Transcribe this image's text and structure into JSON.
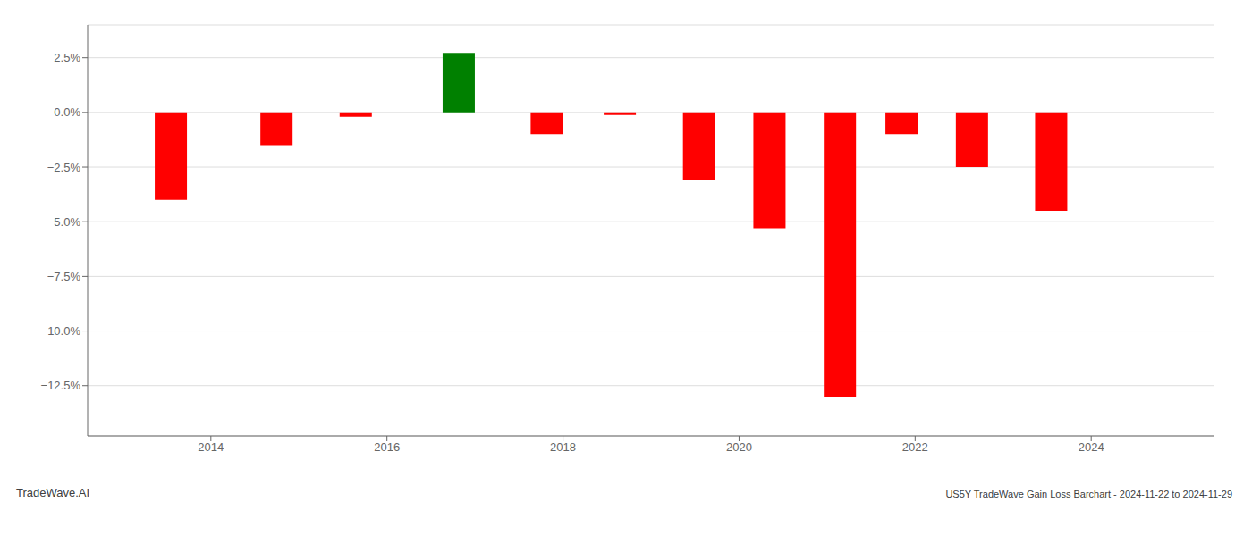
{
  "chart_data": {
    "type": "bar",
    "x": [
      2013.55,
      2014.75,
      2015.65,
      2016.82,
      2017.82,
      2018.65,
      2019.55,
      2020.35,
      2021.15,
      2021.85,
      2022.65,
      2023.55
    ],
    "values": [
      -0.04,
      -0.015,
      -0.002,
      0.0272,
      -0.01,
      -0.0012,
      -0.031,
      -0.053,
      -0.13,
      -0.01,
      -0.025,
      -0.045
    ],
    "colors": [
      "#ff0000",
      "#ff0000",
      "#ff0000",
      "#008000",
      "#ff0000",
      "#ff0000",
      "#ff0000",
      "#ff0000",
      "#ff0000",
      "#ff0000",
      "#ff0000",
      "#ff0000"
    ],
    "xlim": [
      2012.6,
      2025.4
    ],
    "xticks": [
      2014,
      2016,
      2018,
      2020,
      2022,
      2024
    ],
    "ylim": [
      -0.148,
      0.04
    ],
    "yticks": [
      {
        "value": -0.125,
        "label": "−12.5%"
      },
      {
        "value": -0.1,
        "label": "−10.0%"
      },
      {
        "value": -0.075,
        "label": "−7.5%"
      },
      {
        "value": -0.05,
        "label": "−5.0%"
      },
      {
        "value": -0.025,
        "label": "−2.5%"
      },
      {
        "value": 0.0,
        "label": "0.0%"
      },
      {
        "value": 0.025,
        "label": "2.5%"
      }
    ],
    "grid": true,
    "annotations": [
      "TradeWave.AI",
      "US5Y TradeWave Gain Loss Barchart - 2024-11-22 to 2024-11-29"
    ]
  }
}
